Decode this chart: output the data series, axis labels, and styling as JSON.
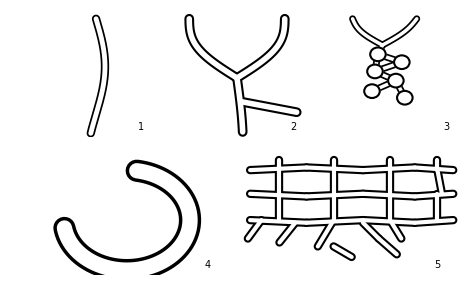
{
  "bg_color": "#a0a0a0",
  "border_color": "#ffffff",
  "sediment_color": "#909090",
  "white": "#ffffff",
  "black": "#000000",
  "label_fontsize": 7,
  "panel_bg": "#909090",
  "outer_bg": "#ffffff",
  "figsize": [
    4.74,
    2.81
  ],
  "dpi": 100
}
